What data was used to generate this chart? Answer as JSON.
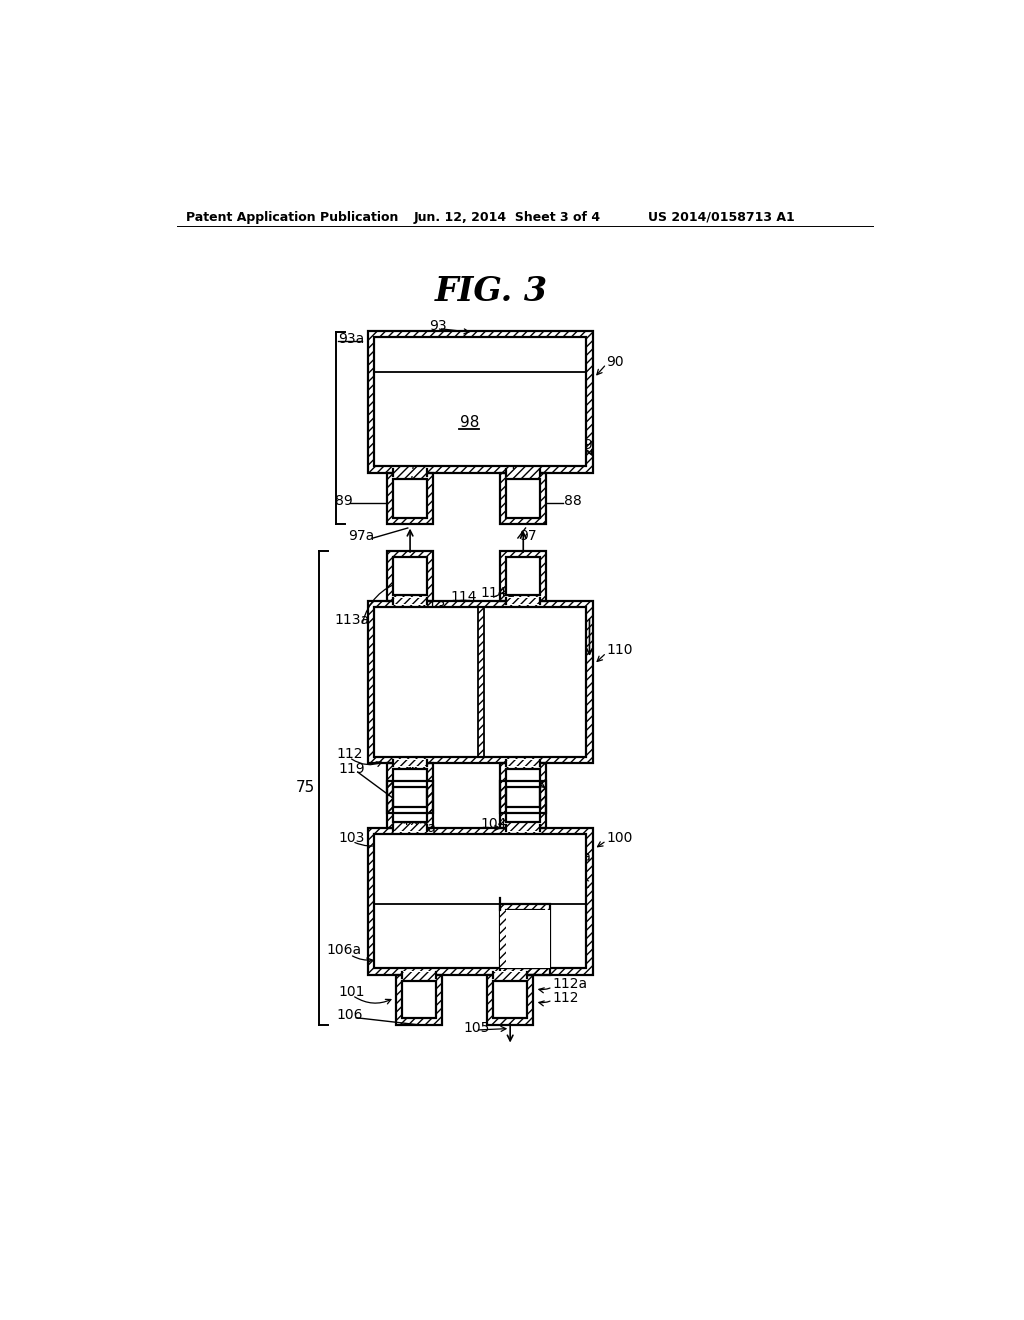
{
  "bg": "#ffffff",
  "lc": "#000000",
  "header_left": "Patent Application Publication",
  "header_mid": "Jun. 12, 2014  Sheet 3 of 4",
  "header_right": "US 2014/0158713 A1",
  "fig_title": "FIG. 3"
}
